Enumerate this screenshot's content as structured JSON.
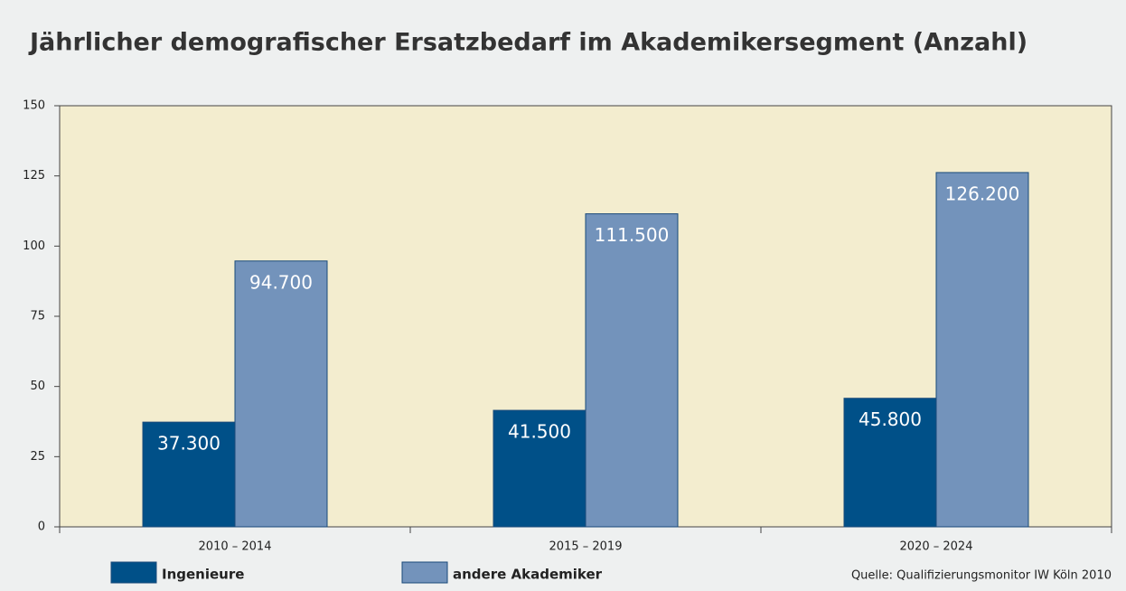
{
  "chart_data": {
    "type": "bar",
    "title": "Jährlicher demografischer Ersatzbedarf im Akademikersegment (Anzahl)",
    "categories": [
      "2010 – 2014",
      "2015 – 2019",
      "2020 – 2024"
    ],
    "series": [
      {
        "name": "Ingenieure",
        "color": "#005088",
        "values": [
          37.3,
          41.5,
          45.8
        ],
        "value_labels": [
          "37.300",
          "41.500",
          "45.800"
        ]
      },
      {
        "name": "andere Akademiker",
        "color": "#7393bb",
        "values": [
          94.7,
          111.5,
          126.2
        ],
        "value_labels": [
          "94.700",
          "111.500",
          "126.200"
        ]
      }
    ],
    "ylim": [
      0,
      150
    ],
    "yticks": [
      0,
      25,
      50,
      75,
      100,
      125,
      150
    ],
    "source": "Quelle: Qualifizierungsmonitor IW Köln 2010",
    "plot_background": "#f3edcf"
  }
}
